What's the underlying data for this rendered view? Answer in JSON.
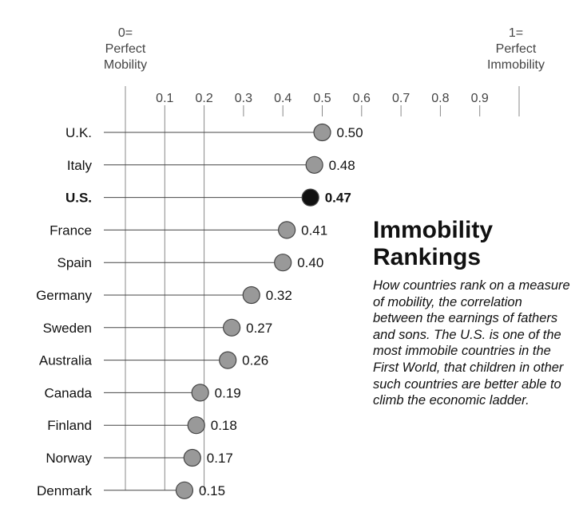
{
  "chart_data": {
    "type": "dot",
    "title": "Immobility Rankings",
    "subtitle": "How countries rank on a measure of mobility, the correlation between the earnings of fathers and sons. The U.S. is one of the most immobile countries in the First World, that children in other such countries are better able to climb the economic ladder.",
    "axis_end_labels": {
      "left": [
        "0=",
        "Perfect",
        "Mobility"
      ],
      "right": [
        "1=",
        "Perfect",
        "Immobility"
      ]
    },
    "ticks": [
      "0.1",
      "0.2",
      "0.3",
      "0.4",
      "0.5",
      "0.6",
      "0.7",
      "0.8",
      "0.9"
    ],
    "tick_values": [
      0.1,
      0.2,
      0.3,
      0.4,
      0.5,
      0.6,
      0.7,
      0.8,
      0.9
    ],
    "xlim": [
      0,
      1
    ],
    "highlight": "U.S.",
    "colors": {
      "dot": "#999999",
      "highlight": "#111111",
      "line": "#444444",
      "grid": "#888888"
    },
    "categories": [
      "U.K.",
      "Italy",
      "U.S.",
      "France",
      "Spain",
      "Germany",
      "Sweden",
      "Australia",
      "Canada",
      "Finland",
      "Norway",
      "Denmark"
    ],
    "values": [
      0.5,
      0.48,
      0.47,
      0.41,
      0.4,
      0.32,
      0.27,
      0.26,
      0.19,
      0.18,
      0.17,
      0.15
    ],
    "value_labels": [
      "0.50",
      "0.48",
      "0.47",
      "0.41",
      "0.40",
      "0.32",
      "0.27",
      "0.26",
      "0.19",
      "0.18",
      "0.17",
      "0.15"
    ]
  }
}
